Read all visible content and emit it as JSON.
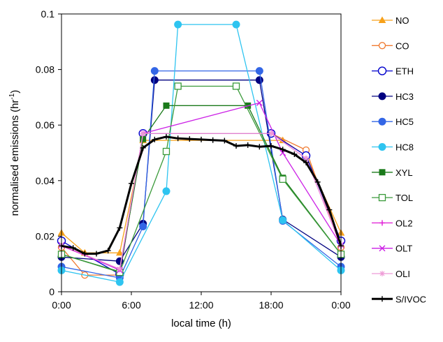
{
  "chart_data": {
    "type": "line",
    "xlabel": "local time (h)",
    "ylabel": "normalised emissions (hr",
    "ylabel_sup": "-1",
    "ylabel_close": ")",
    "xlim": [
      0,
      24
    ],
    "ylim": [
      0,
      0.1
    ],
    "xticks": [
      0,
      6,
      12,
      18,
      24
    ],
    "xtick_labels": [
      "0:00",
      "6:00",
      "12:00",
      "18:00",
      "0:00"
    ],
    "yticks": [
      0,
      0.02,
      0.04,
      0.06,
      0.08,
      0.1
    ],
    "ytick_labels": [
      "0",
      "0.02",
      "0.04",
      "0.06",
      "0.08",
      "0.1"
    ],
    "grid": false,
    "legend_position": "right",
    "series": [
      {
        "name": "NO",
        "color": "#f7a11a",
        "marker": "triangle-filled",
        "width": 1.3,
        "x": [
          0,
          2,
          5,
          7,
          19,
          21,
          24
        ],
        "y": [
          0.0212,
          0.014,
          0.014,
          0.0545,
          0.0545,
          0.049,
          0.0212
        ]
      },
      {
        "name": "CO",
        "color": "#f07a30",
        "marker": "circle-open",
        "width": 1.3,
        "x": [
          0,
          2,
          5,
          7,
          18,
          21,
          24
        ],
        "y": [
          0.016,
          0.006,
          0.006,
          0.057,
          0.057,
          0.051,
          0.016
        ]
      },
      {
        "name": "ETH",
        "color": "#0000cc",
        "marker": "circle-open-large",
        "width": 1.3,
        "x": [
          0,
          5,
          7,
          18,
          21,
          24
        ],
        "y": [
          0.0183,
          0.0063,
          0.057,
          0.057,
          0.049,
          0.0183
        ]
      },
      {
        "name": "HC3",
        "color": "#000080",
        "marker": "circle-filled",
        "width": 1.3,
        "x": [
          0,
          5,
          7,
          8,
          17,
          19,
          24
        ],
        "y": [
          0.0125,
          0.011,
          0.0245,
          0.0762,
          0.0762,
          0.026,
          0.0125
        ]
      },
      {
        "name": "HC5",
        "color": "#3366e6",
        "marker": "circle-filled",
        "width": 1.3,
        "x": [
          0,
          5,
          7,
          8,
          17,
          19,
          24
        ],
        "y": [
          0.009,
          0.005,
          0.0235,
          0.0795,
          0.0795,
          0.0255,
          0.009
        ]
      },
      {
        "name": "HC8",
        "color": "#2ec4f0",
        "marker": "circle-filled",
        "width": 1.3,
        "x": [
          0,
          5,
          9,
          10,
          15,
          19,
          24
        ],
        "y": [
          0.0077,
          0.0035,
          0.0362,
          0.0962,
          0.0962,
          0.0258,
          0.0077
        ]
      },
      {
        "name": "XYL",
        "color": "#1a7a1a",
        "marker": "square-filled",
        "width": 1.3,
        "x": [
          0,
          5,
          7,
          9,
          16,
          19,
          24
        ],
        "y": [
          0.0135,
          0.0072,
          0.055,
          0.067,
          0.067,
          0.041,
          0.0135
        ]
      },
      {
        "name": "TOL",
        "color": "#3a9a3a",
        "marker": "square-open",
        "width": 1.3,
        "x": [
          0,
          5,
          9,
          10,
          15,
          19,
          24
        ],
        "y": [
          0.0135,
          0.007,
          0.0505,
          0.074,
          0.074,
          0.0405,
          0.0135
        ]
      },
      {
        "name": "OL2",
        "color": "#e01ad6",
        "marker": "plus",
        "width": 1.3,
        "x": [
          0,
          5,
          7,
          18,
          21,
          24
        ],
        "y": [
          0.0165,
          0.008,
          0.057,
          0.057,
          0.048,
          0.0165
        ]
      },
      {
        "name": "OLT",
        "color": "#cc22e6",
        "marker": "x",
        "width": 1.3,
        "x": [
          0,
          5,
          7,
          17,
          19,
          24
        ],
        "y": [
          0.0168,
          0.0078,
          0.057,
          0.068,
          0.05,
          0.0168
        ]
      },
      {
        "name": "OLI",
        "color": "#ee9ad6",
        "marker": "asterisk",
        "width": 1.3,
        "x": [
          0,
          5,
          7,
          18,
          21,
          24
        ],
        "y": [
          0.0168,
          0.0082,
          0.057,
          0.057,
          0.048,
          0.0168
        ]
      },
      {
        "name": "S/IVOC",
        "color": "#000000",
        "marker": "plus",
        "width": 3,
        "x": [
          0,
          1,
          2,
          3,
          4,
          5,
          6,
          7,
          8,
          9,
          10,
          11,
          12,
          13,
          14,
          15,
          16,
          17,
          18,
          19,
          20,
          21,
          22,
          23,
          24
        ],
        "y": [
          0.0165,
          0.0158,
          0.0137,
          0.0137,
          0.0148,
          0.023,
          0.039,
          0.0518,
          0.0548,
          0.0558,
          0.0552,
          0.055,
          0.0548,
          0.0546,
          0.0544,
          0.0525,
          0.0528,
          0.0522,
          0.0525,
          0.0512,
          0.0495,
          0.0465,
          0.0395,
          0.0295,
          0.0165
        ]
      }
    ]
  }
}
